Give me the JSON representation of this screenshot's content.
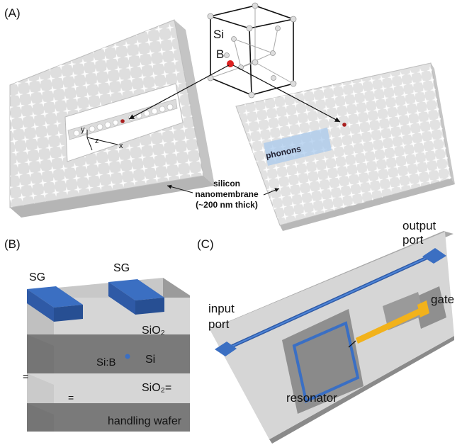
{
  "panel_a": {
    "label": "(A)",
    "crystal_si": "Si",
    "crystal_b": "B",
    "axis_y": "y",
    "axis_z": "z",
    "axis_x": "x",
    "phonons": "phonons",
    "caption_line1": "silicon",
    "caption_line2": "nanomembrane",
    "caption_line3": "(~200 nm thick)"
  },
  "panel_b": {
    "label": "(B)",
    "sg_left": "SG",
    "sg_right": "SG",
    "sio2_top": "SiO₂",
    "si": "Si",
    "sib": "Si:B",
    "sio2_bottom": "SiO₂=",
    "handling": "handling wafer",
    "mark1": "=",
    "mark2": "="
  },
  "panel_c": {
    "label": "(C)",
    "output_line1": "output",
    "output_line2": "port",
    "input_line1": "input",
    "input_line2": "port",
    "gate": "gate",
    "resonator": "resonator"
  },
  "colors": {
    "membrane": "#dedede",
    "blue": "#3a6fc4",
    "gate_gold": "#f2b21b",
    "boron_red": "#cc2222"
  }
}
